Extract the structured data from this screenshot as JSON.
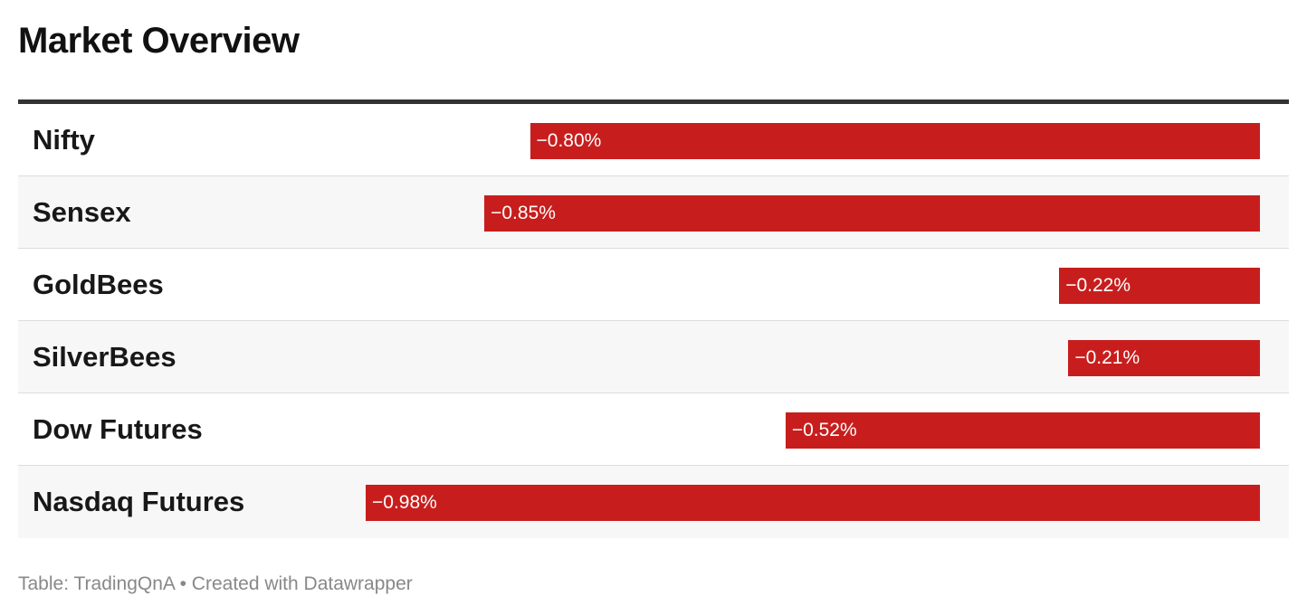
{
  "title": "Market Overview",
  "footer": "Table: TradingQnA • Created with Datawrapper",
  "colors": {
    "bar": "#c71e1d",
    "header_rule": "#333333",
    "row_alt": "#f7f7f7",
    "footer_text": "#888888"
  },
  "chart_data": {
    "type": "bar",
    "orientation": "horizontal",
    "categories": [
      "Nifty",
      "Sensex",
      "GoldBees",
      "SilverBees",
      "Dow Futures",
      "Nasdaq Futures"
    ],
    "values": [
      -0.8,
      -0.85,
      -0.22,
      -0.21,
      -0.52,
      -0.98
    ],
    "value_labels": [
      "−0.80%",
      "−0.85%",
      "−0.22%",
      "−0.21%",
      "−0.52%",
      "−0.98%"
    ],
    "unit": "%",
    "title": "Market Overview",
    "xlim": [
      -0.98,
      0
    ]
  }
}
